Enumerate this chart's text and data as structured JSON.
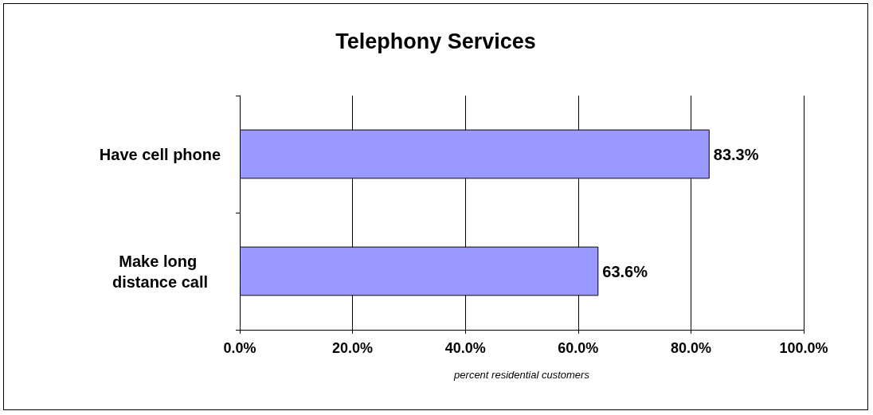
{
  "chart_data": {
    "type": "bar",
    "orientation": "horizontal",
    "title": "Telephony Services",
    "xlabel": "percent residential customers",
    "categories": [
      "Have cell phone",
      "Make long distance call"
    ],
    "values": [
      83.3,
      63.6
    ],
    "color": "#9999ff",
    "value_labels": [
      "83.3%",
      "63.6%"
    ],
    "xlim": [
      0,
      100
    ],
    "xticks": [
      {
        "value": 0,
        "label": "0.0%"
      },
      {
        "value": 20,
        "label": "20.0%"
      },
      {
        "value": 40,
        "label": "40.0%"
      },
      {
        "value": 60,
        "label": "60.0%"
      },
      {
        "value": 80,
        "label": "80.0%"
      },
      {
        "value": 100,
        "label": "100.0%"
      }
    ],
    "grid": "x"
  }
}
